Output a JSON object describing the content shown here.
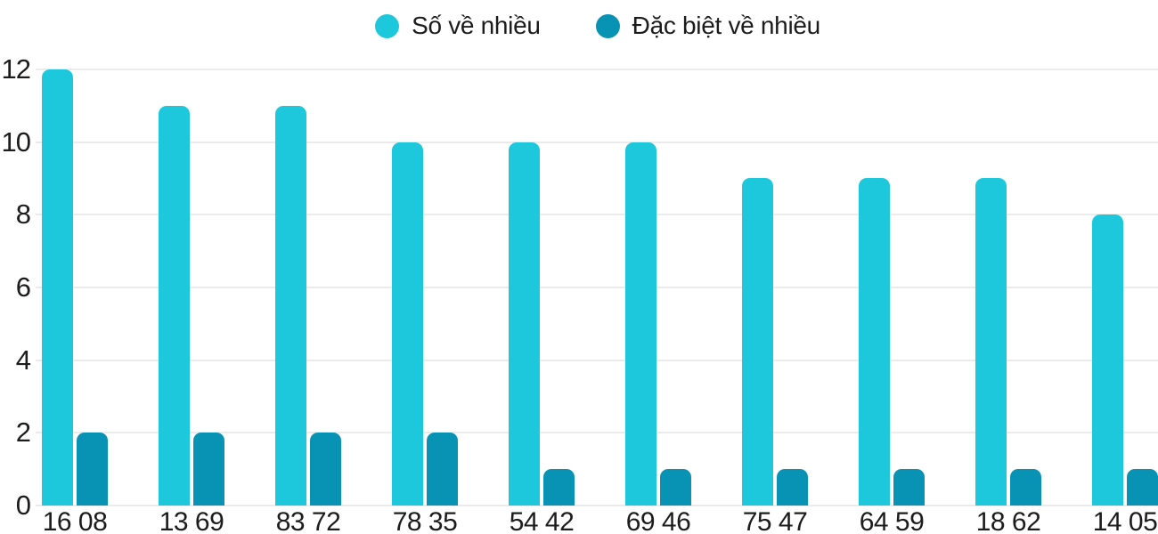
{
  "chart_data": {
    "type": "bar",
    "categories": [
      "16 08",
      "13 69",
      "83 72",
      "78 35",
      "54 42",
      "69 46",
      "75 47",
      "64 59",
      "18 62",
      "14 05"
    ],
    "series": [
      {
        "name": "Số về nhiều",
        "color": "#1EC8DC",
        "values": [
          12,
          11,
          11,
          10,
          10,
          10,
          9,
          9,
          9,
          8
        ]
      },
      {
        "name": "Đặc biệt về nhiều",
        "color": "#0892B4",
        "values": [
          2,
          2,
          2,
          2,
          1,
          1,
          1,
          1,
          1,
          1
        ]
      }
    ],
    "xlabel": "",
    "ylabel": "",
    "ylim": [
      0,
      12
    ],
    "yticks": [
      0,
      2,
      4,
      6,
      8,
      10,
      12
    ],
    "grid": true,
    "legend_position": "top-center"
  },
  "colors": {
    "background": "#ffffff",
    "text": "#1c1c1c",
    "gridline": "#ebebeb",
    "series_light": "#1EC8DC",
    "series_dark": "#0892B4"
  }
}
